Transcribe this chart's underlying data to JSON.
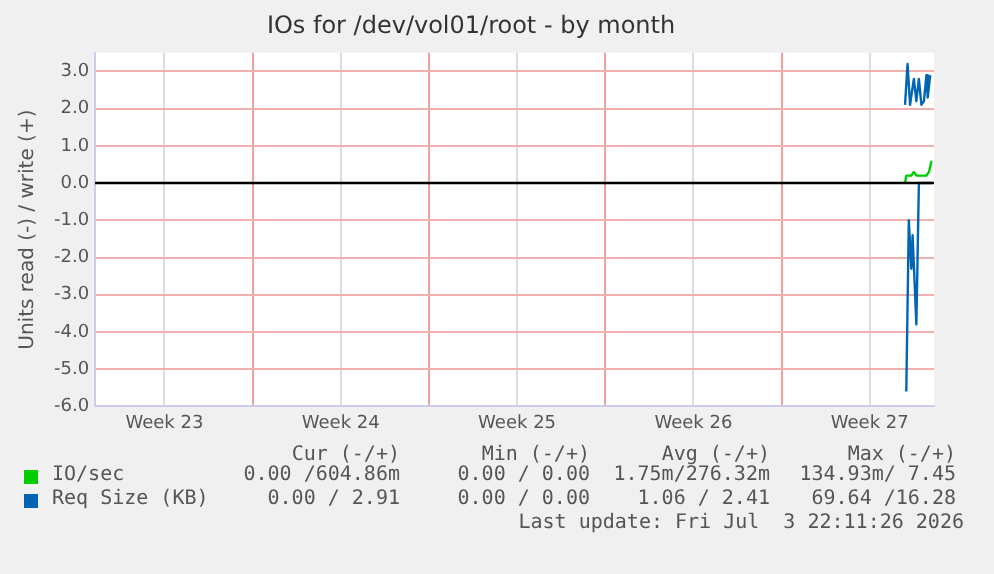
{
  "chart_data": {
    "type": "line",
    "title": "IOs for /dev/vol01/root - by month",
    "ylabel": "Units read (-) / write (+)",
    "xlim": [
      "2026-06-01T18:00",
      "2026-07-05T01:12"
    ],
    "xticks": [
      {
        "value": "2026-06-04T12:00",
        "label": "Week 23"
      },
      {
        "value": "2026-06-08T00:00",
        "label": null
      },
      {
        "value": "2026-06-11T12:00",
        "label": "Week 24"
      },
      {
        "value": "2026-06-15T00:00",
        "label": null
      },
      {
        "value": "2026-06-18T12:00",
        "label": "Week 25"
      },
      {
        "value": "2026-06-22T00:00",
        "label": null
      },
      {
        "value": "2026-06-25T12:00",
        "label": "Week 26"
      },
      {
        "value": "2026-06-29T00:00",
        "label": null
      },
      {
        "value": "2026-07-02T12:00",
        "label": "Week 27"
      }
    ],
    "ylim": [
      -6,
      3.5
    ],
    "yticks": [
      {
        "value": -6,
        "label": "-6.0"
      },
      {
        "value": -5,
        "label": "-5.0"
      },
      {
        "value": -4,
        "label": "-4.0"
      },
      {
        "value": -3,
        "label": "-3.0"
      },
      {
        "value": -2,
        "label": "-2.0"
      },
      {
        "value": -1,
        "label": "-1.0"
      },
      {
        "value": 0,
        "label": "0.0"
      },
      {
        "value": 1,
        "label": "1.0"
      },
      {
        "value": 2,
        "label": "2.0"
      },
      {
        "value": 3,
        "label": "3.0"
      }
    ],
    "grid": true,
    "legend": "bottom",
    "line_style": "solid",
    "marker": "none",
    "ref_lines": [
      {
        "axis": "y",
        "value": 0,
        "color": "#000000"
      }
    ],
    "series": [
      {
        "name": "IO/sec",
        "color": "#00cc00",
        "x": [
          "2026-07-03T21:36",
          "2026-07-03T22:48",
          "2026-07-04T03:36",
          "2026-07-04T06:00",
          "2026-07-04T08:24",
          "2026-07-04T18:00",
          "2026-07-04T20:24",
          "2026-07-04T22:48"
        ],
        "values": [
          0.0,
          0.2,
          0.2,
          0.3,
          0.2,
          0.2,
          0.3,
          0.6
        ]
      },
      {
        "name": "Req Size (KB)",
        "color": "#0066b3",
        "x": [
          "2026-07-03T21:36",
          "2026-07-04T00:00",
          "2026-07-04T02:24",
          "2026-07-04T06:00",
          "2026-07-04T08:24",
          "2026-07-04T10:48",
          "2026-07-04T13:12",
          "2026-07-04T15:36",
          "2026-07-04T18:00",
          "2026-07-04T19:12",
          "2026-07-04T21:36"
        ],
        "values": [
          2.1,
          3.2,
          2.1,
          2.8,
          2.2,
          2.8,
          2.1,
          2.2,
          2.9,
          2.3,
          2.9
        ]
      },
      {
        "color": "#0066b3",
        "x": [
          "2026-07-03T22:48",
          "2026-07-04T01:12",
          "2026-07-04T03:36",
          "2026-07-04T04:48",
          "2026-07-04T08:24",
          "2026-07-04T10:48",
          "2026-07-04T22:48"
        ],
        "values": [
          -5.6,
          -1.0,
          -2.3,
          -1.4,
          -3.8,
          0,
          0
        ]
      }
    ],
    "annotations": [
      "Cur (-/+)",
      "Min (-/+)",
      "Avg (-/+)",
      "Max (-/+)",
      "0.00 /604.86m",
      "0.00 / 0.00",
      "1.75m/276.32m",
      "134.93m/ 7.45",
      "0.00 / 2.91",
      "0.00 / 0.00",
      "1.06 / 2.41",
      "69.64 /16.28",
      "Last update: Fri Jul  3 22:11:26 2026"
    ]
  }
}
